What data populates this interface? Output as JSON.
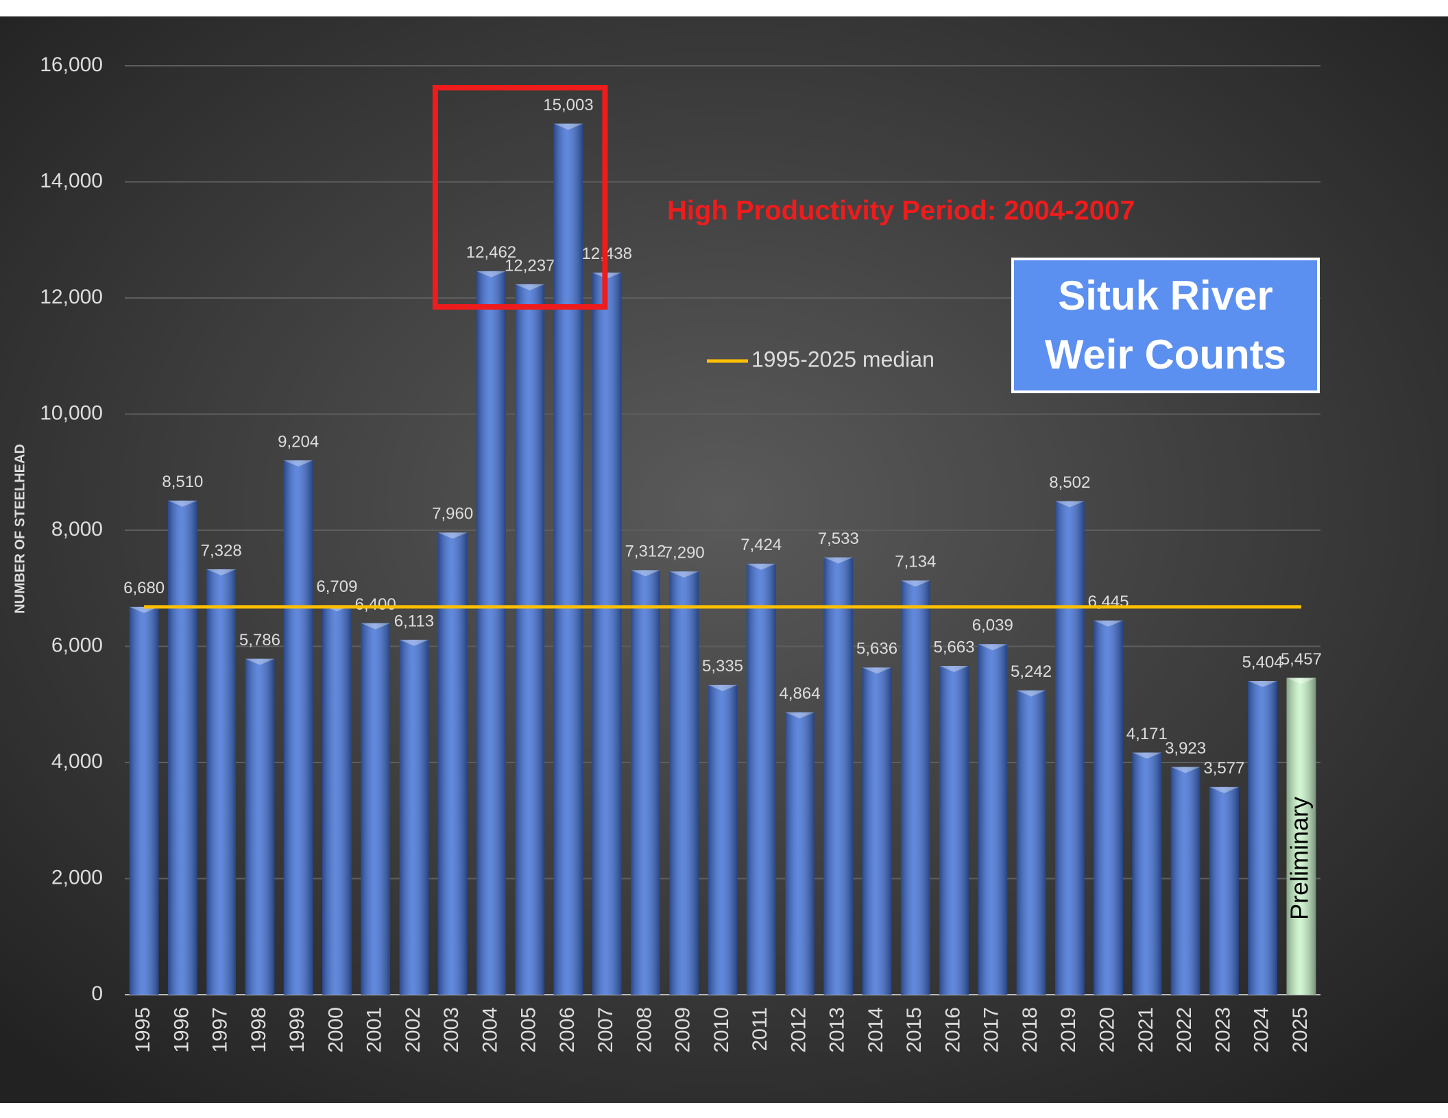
{
  "chart_data": {
    "type": "bar",
    "title": "Situk River Weir Counts",
    "y_label": "NUMBER OF STEELHEAD",
    "annotation": "High Productivity Period: 2004-2007",
    "preliminary_label": "Preliminary",
    "categories": [
      "1995",
      "1996",
      "1997",
      "1998",
      "1999",
      "2000",
      "2001",
      "2002",
      "2003",
      "2004",
      "2005",
      "2006",
      "2007",
      "2008",
      "2009",
      "2010",
      "2011",
      "2012",
      "2013",
      "2014",
      "2015",
      "2016",
      "2017",
      "2018",
      "2019",
      "2020",
      "2021",
      "2022",
      "2023",
      "2024",
      "2025"
    ],
    "values": [
      6680,
      8510,
      7328,
      5786,
      9204,
      6709,
      6400,
      6113,
      7960,
      12462,
      12237,
      15003,
      12438,
      7312,
      7290,
      5335,
      7424,
      4864,
      7533,
      5636,
      7134,
      5663,
      6039,
      5242,
      8502,
      6445,
      4171,
      3923,
      3577,
      5404,
      5457
    ],
    "value_labels": [
      "6,680",
      "8,510",
      "7,328",
      "5,786",
      "9,204",
      "6,709",
      "6,400",
      "6,113",
      "7,960",
      "12,462",
      "12,237",
      "15,003",
      "12,438",
      "7,312",
      "7,290",
      "5,335",
      "7,424",
      "4,864",
      "7,533",
      "5,636",
      "7,134",
      "5,663",
      "6,039",
      "5,242",
      "8,502",
      "6,445",
      "4,171",
      "3,923",
      "3,577",
      "5,404",
      "5,457"
    ],
    "colors": [
      "#3f6fd6",
      "#3f6fd6",
      "#3f6fd6",
      "#3f6fd6",
      "#3f6fd6",
      "#3f6fd6",
      "#3f6fd6",
      "#3f6fd6",
      "#3f6fd6",
      "#3f6fd6",
      "#3f6fd6",
      "#3f6fd6",
      "#3f6fd6",
      "#3f6fd6",
      "#3f6fd6",
      "#3f6fd6",
      "#3f6fd6",
      "#3f6fd6",
      "#3f6fd6",
      "#3f6fd6",
      "#3f6fd6",
      "#3f6fd6",
      "#3f6fd6",
      "#3f6fd6",
      "#3f6fd6",
      "#3f6fd6",
      "#3f6fd6",
      "#3f6fd6",
      "#3f6fd6",
      "#3f6fd6",
      "#c9f5c9"
    ],
    "median": {
      "name": "1995-2025 median",
      "value": 6680,
      "color": "#ffc000"
    },
    "ylim": [
      0,
      16000
    ],
    "yticks": [
      0,
      {
        "value": 2000,
        "label": "2,000"
      },
      {
        "value": 4000,
        "label": "4,000"
      },
      {
        "value": 6000,
        "label": "6,000"
      },
      {
        "value": 8000,
        "label": "8,000"
      },
      {
        "value": 10000,
        "label": "10,000"
      },
      {
        "value": 12000,
        "label": "12,000"
      },
      {
        "value": 14000,
        "label": "14,000"
      },
      {
        "value": 16000,
        "label": "16,000"
      }
    ],
    "grid": true
  }
}
